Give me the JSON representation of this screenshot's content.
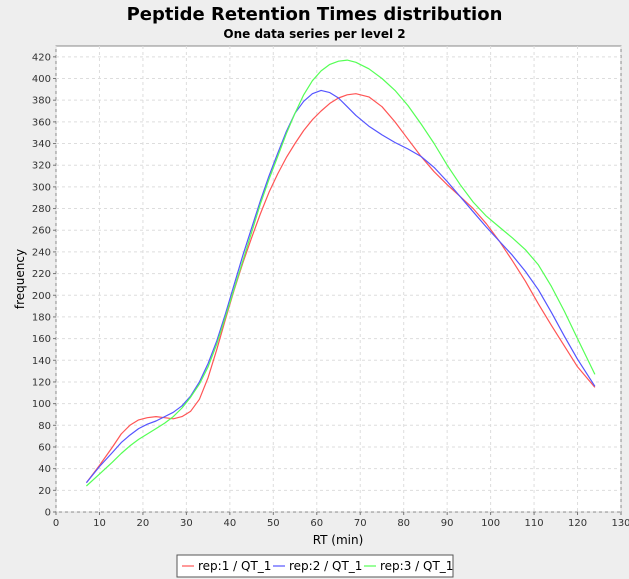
{
  "chart_data": {
    "type": "line",
    "title": "Peptide Retention Times distribution",
    "subtitle": "One data series per level 2",
    "xlabel": "RT (min)",
    "ylabel": "frequency",
    "xlim": [
      0,
      130
    ],
    "ylim": [
      0,
      430
    ],
    "xticks": [
      0,
      10,
      20,
      30,
      40,
      50,
      60,
      70,
      80,
      90,
      100,
      110,
      120,
      130
    ],
    "yticks": [
      0,
      20,
      40,
      60,
      80,
      100,
      120,
      140,
      160,
      180,
      200,
      220,
      240,
      260,
      280,
      300,
      320,
      340,
      360,
      380,
      400,
      420
    ],
    "grid": true,
    "legend_position": "bottom",
    "series": [
      {
        "name": "rep:1 / QT_1",
        "color": "#ff5555",
        "points": [
          [
            7,
            27
          ],
          [
            10,
            43
          ],
          [
            13,
            60
          ],
          [
            15,
            72
          ],
          [
            17,
            80
          ],
          [
            19,
            85
          ],
          [
            21,
            87
          ],
          [
            23,
            88
          ],
          [
            25,
            87
          ],
          [
            27,
            86
          ],
          [
            29,
            88
          ],
          [
            31,
            93
          ],
          [
            33,
            104
          ],
          [
            35,
            124
          ],
          [
            37,
            150
          ],
          [
            39,
            178
          ],
          [
            41,
            205
          ],
          [
            43,
            230
          ],
          [
            45,
            253
          ],
          [
            47,
            275
          ],
          [
            49,
            295
          ],
          [
            51,
            312
          ],
          [
            53,
            327
          ],
          [
            55,
            340
          ],
          [
            57,
            352
          ],
          [
            59,
            362
          ],
          [
            61,
            370
          ],
          [
            63,
            377
          ],
          [
            65,
            382
          ],
          [
            67,
            385
          ],
          [
            69,
            386
          ],
          [
            72,
            383
          ],
          [
            75,
            374
          ],
          [
            78,
            360
          ],
          [
            81,
            344
          ],
          [
            84,
            328
          ],
          [
            87,
            314
          ],
          [
            90,
            302
          ],
          [
            93,
            291
          ],
          [
            96,
            280
          ],
          [
            99,
            266
          ],
          [
            102,
            250
          ],
          [
            105,
            232
          ],
          [
            108,
            213
          ],
          [
            111,
            192
          ],
          [
            114,
            172
          ],
          [
            117,
            153
          ],
          [
            120,
            134
          ],
          [
            124,
            115
          ]
        ]
      },
      {
        "name": "rep:2 / QT_1",
        "color": "#5555ff",
        "points": [
          [
            7,
            27
          ],
          [
            10,
            42
          ],
          [
            13,
            55
          ],
          [
            15,
            64
          ],
          [
            17,
            71
          ],
          [
            19,
            77
          ],
          [
            21,
            81
          ],
          [
            23,
            84
          ],
          [
            25,
            88
          ],
          [
            27,
            92
          ],
          [
            29,
            98
          ],
          [
            31,
            107
          ],
          [
            33,
            120
          ],
          [
            35,
            137
          ],
          [
            37,
            158
          ],
          [
            39,
            183
          ],
          [
            41,
            210
          ],
          [
            43,
            237
          ],
          [
            45,
            262
          ],
          [
            47,
            287
          ],
          [
            49,
            310
          ],
          [
            51,
            331
          ],
          [
            53,
            351
          ],
          [
            55,
            368
          ],
          [
            57,
            379
          ],
          [
            59,
            386
          ],
          [
            61,
            389
          ],
          [
            63,
            387
          ],
          [
            65,
            382
          ],
          [
            67,
            374
          ],
          [
            69,
            366
          ],
          [
            72,
            356
          ],
          [
            75,
            348
          ],
          [
            78,
            341
          ],
          [
            81,
            335
          ],
          [
            84,
            328
          ],
          [
            87,
            318
          ],
          [
            90,
            305
          ],
          [
            93,
            291
          ],
          [
            96,
            277
          ],
          [
            99,
            263
          ],
          [
            102,
            250
          ],
          [
            105,
            237
          ],
          [
            108,
            222
          ],
          [
            111,
            205
          ],
          [
            114,
            184
          ],
          [
            117,
            162
          ],
          [
            120,
            141
          ],
          [
            124,
            116
          ]
        ]
      },
      {
        "name": "rep:3 / QT_1",
        "color": "#55ff55",
        "points": [
          [
            7,
            24
          ],
          [
            10,
            35
          ],
          [
            13,
            46
          ],
          [
            15,
            54
          ],
          [
            17,
            61
          ],
          [
            19,
            67
          ],
          [
            21,
            72
          ],
          [
            23,
            77
          ],
          [
            25,
            82
          ],
          [
            27,
            88
          ],
          [
            29,
            96
          ],
          [
            31,
            106
          ],
          [
            33,
            118
          ],
          [
            35,
            134
          ],
          [
            37,
            155
          ],
          [
            39,
            180
          ],
          [
            41,
            206
          ],
          [
            43,
            232
          ],
          [
            45,
            258
          ],
          [
            47,
            284
          ],
          [
            49,
            307
          ],
          [
            51,
            328
          ],
          [
            53,
            349
          ],
          [
            55,
            368
          ],
          [
            57,
            385
          ],
          [
            59,
            398
          ],
          [
            61,
            407
          ],
          [
            63,
            413
          ],
          [
            65,
            416
          ],
          [
            67,
            417
          ],
          [
            69,
            415
          ],
          [
            72,
            409
          ],
          [
            75,
            400
          ],
          [
            78,
            389
          ],
          [
            81,
            375
          ],
          [
            84,
            358
          ],
          [
            87,
            340
          ],
          [
            90,
            320
          ],
          [
            93,
            302
          ],
          [
            96,
            286
          ],
          [
            99,
            273
          ],
          [
            102,
            263
          ],
          [
            105,
            253
          ],
          [
            108,
            242
          ],
          [
            111,
            228
          ],
          [
            114,
            208
          ],
          [
            117,
            185
          ],
          [
            120,
            160
          ],
          [
            124,
            127
          ]
        ]
      }
    ]
  }
}
